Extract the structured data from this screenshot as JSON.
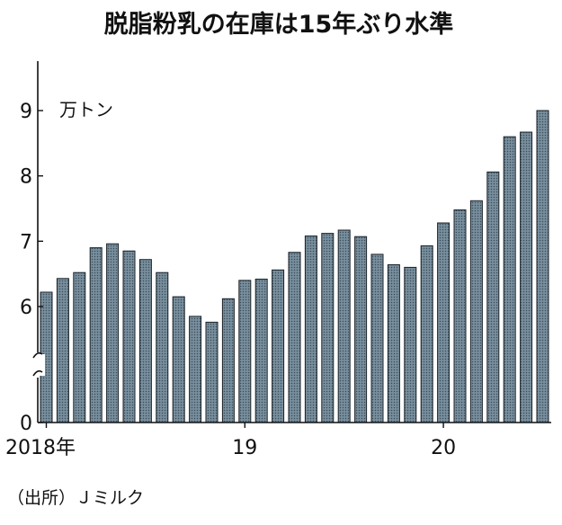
{
  "chart_data": {
    "type": "bar",
    "title": "脱脂粉乳の在庫は15年ぶり水準",
    "unit": "万トン",
    "source": "（出所）Ｊミルク",
    "ylim": [
      0,
      9.9
    ],
    "y_ticks": [
      "9",
      "8",
      "7",
      "6",
      "0"
    ],
    "y_axis_break": true,
    "x_tick_labels": [
      {
        "label": "2018年",
        "index": 0
      },
      {
        "label": "19",
        "index": 12
      },
      {
        "label": "20",
        "index": 24
      }
    ],
    "grid": false,
    "bar_color": "#6d8494",
    "categories": [
      "2018-01",
      "2018-02",
      "2018-03",
      "2018-04",
      "2018-05",
      "2018-06",
      "2018-07",
      "2018-08",
      "2018-09",
      "2018-10",
      "2018-11",
      "2018-12",
      "2019-01",
      "2019-02",
      "2019-03",
      "2019-04",
      "2019-05",
      "2019-06",
      "2019-07",
      "2019-08",
      "2019-09",
      "2019-10",
      "2019-11",
      "2019-12",
      "2020-01",
      "2020-02",
      "2020-03",
      "2020-04",
      "2020-05",
      "2020-06",
      "2020-07"
    ],
    "values": [
      6.22,
      6.43,
      6.52,
      6.9,
      6.96,
      6.85,
      6.72,
      6.52,
      6.15,
      5.85,
      5.76,
      6.12,
      6.4,
      6.42,
      6.56,
      6.83,
      7.08,
      7.12,
      7.17,
      7.07,
      6.8,
      6.64,
      6.6,
      6.93,
      7.28,
      7.48,
      7.62,
      8.06,
      8.6,
      8.67,
      9.0
    ]
  }
}
